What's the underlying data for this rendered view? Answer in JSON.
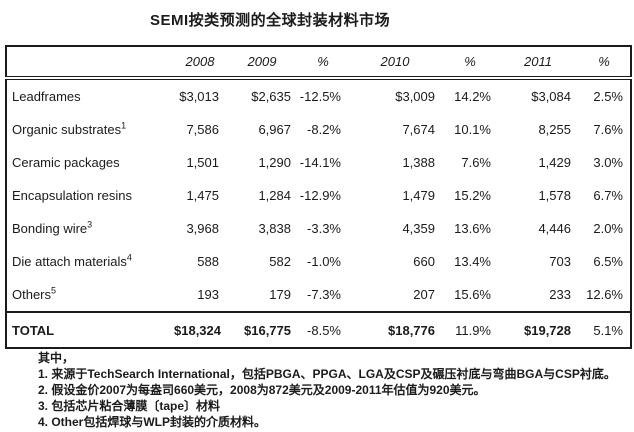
{
  "title": "SEMI按类预测的全球封装材料市场",
  "table": {
    "columns": [
      "",
      "2008",
      "2009",
      "%",
      "2010",
      "%",
      "2011",
      "%"
    ],
    "rows": [
      {
        "label": "Leadframes",
        "sup": "",
        "values": [
          "$3,013",
          "$2,635",
          "-12.5%",
          "$3,009",
          "14.2%",
          "$3,084",
          "2.5%"
        ]
      },
      {
        "label": "Organic substrates",
        "sup": "1",
        "values": [
          "7,586",
          "6,967",
          "-8.2%",
          "7,674",
          "10.1%",
          "8,255",
          "7.6%"
        ]
      },
      {
        "label": "Ceramic packages",
        "sup": "",
        "values": [
          "1,501",
          "1,290",
          "-14.1%",
          "1,388",
          "7.6%",
          "1,429",
          "3.0%"
        ]
      },
      {
        "label": "Encapsulation resins",
        "sup": "",
        "values": [
          "1,475",
          "1,284",
          "-12.9%",
          "1,479",
          "15.2%",
          "1,578",
          "6.7%"
        ]
      },
      {
        "label": "Bonding wire",
        "sup": "3",
        "values": [
          "3,968",
          "3,838",
          "-3.3%",
          "4,359",
          "13.6%",
          "4,446",
          "2.0%"
        ]
      },
      {
        "label": "Die attach materials",
        "sup": "4",
        "values": [
          "588",
          "582",
          "-1.0%",
          "660",
          "13.4%",
          "703",
          "6.5%"
        ]
      },
      {
        "label": "Others",
        "sup": "5",
        "values": [
          "193",
          "179",
          "-7.3%",
          "207",
          "15.6%",
          "233",
          "12.6%"
        ]
      }
    ],
    "total": {
      "label": "TOTAL",
      "values": [
        "$18,324",
        "$16,775",
        "-8.5%",
        "$18,776",
        "11.9%",
        "$19,728",
        "5.1%"
      ]
    }
  },
  "footnotes": {
    "intro": "其中，",
    "items": [
      "1. 来源于TechSearch International，包括PBGA、PPGA、LGA及CSP及碾压衬底与弯曲BGA与CSP衬底。",
      "2. 假设金价2007为每盎司660美元，2008为872美元及2009-2011年估值为920美元。",
      "3. 包括芯片粘合薄膜〔tape〕材料",
      "4. Other包括焊球与WLP封装的介质材料。"
    ]
  },
  "colors": {
    "text": "#1b1b1b",
    "background": "#ffffff",
    "border": "#1b1b1b"
  }
}
